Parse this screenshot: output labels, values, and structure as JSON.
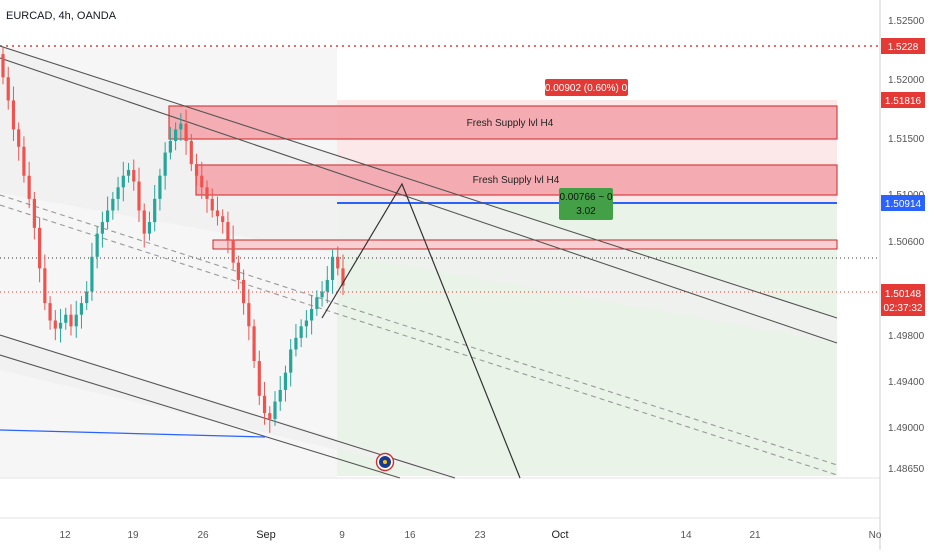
{
  "header": {
    "symbol_label": "EURCAD, 4h, OANDA"
  },
  "colors": {
    "up": "#26a69a",
    "down": "#ef5350",
    "supply_fill": "#f4a6ad",
    "supply_border": "#d32f2f",
    "current_price": "#e53935",
    "target_line": "#2962ff",
    "profit_zone": "#e7f2e6",
    "loss_zone": "#fbe3e5",
    "channel": "#555555",
    "dashed_mid": "#9a9a9a"
  },
  "price_axis": {
    "labels": [
      "1.52500",
      "1.52000",
      "1.51500",
      "1.51000",
      "1.50600",
      "1.49800",
      "1.49400",
      "1.49000",
      "1.48650"
    ]
  },
  "price_tags": {
    "dotted_red": "1.5228",
    "supply_top": "1.51816",
    "target": "1.50914",
    "current": "1.50148",
    "countdown": "02:37:32"
  },
  "time_axis": {
    "labels": [
      "12",
      "19",
      "26",
      "Sep",
      "9",
      "16",
      "23",
      "Oct",
      "14",
      "21",
      "No"
    ]
  },
  "zones": {
    "supply_1_label": "Fresh Supply lvl H4",
    "supply_2_label": "Fresh Supply lvl H4",
    "stop_label": "0.00902 (0.60%) 0",
    "target_label_line1": "0.00766 ~ 0",
    "target_label_line2": "3.02"
  },
  "chart_data": {
    "type": "candlestick",
    "title": "EURCAD, 4h, OANDA",
    "ylim": [
      1.4849,
      1.526
    ],
    "x": "4h bars, late August to early September",
    "x_tick_labels": [
      "12",
      "19",
      "26",
      "Sep",
      "9",
      "16",
      "23",
      "Oct",
      "14",
      "21",
      "No"
    ],
    "y_tick_labels": [
      "1.52500",
      "1.52000",
      "1.51500",
      "1.51000",
      "1.50600",
      "1.49800",
      "1.49400",
      "1.49000",
      "1.48650"
    ],
    "series": [
      {
        "type": "close",
        "values": [
          1.5195,
          1.5175,
          1.515,
          1.5135,
          1.511,
          1.509,
          1.5065,
          1.503,
          1.5,
          1.4985,
          1.4978,
          1.4983,
          1.499,
          1.498,
          1.499,
          1.5,
          1.501,
          1.504,
          1.506,
          1.507,
          1.508,
          1.509,
          1.51,
          1.511,
          1.5115,
          1.5105,
          1.508,
          1.506,
          1.507,
          1.509,
          1.511,
          1.513,
          1.514,
          1.515,
          1.5155,
          1.514,
          1.512,
          1.511,
          1.51,
          1.509,
          1.508,
          1.5075,
          1.507,
          1.5055,
          1.5035,
          1.502,
          1.5,
          1.498,
          1.495,
          1.492,
          1.4905,
          1.49,
          1.4915,
          1.4925,
          1.494,
          1.496,
          1.497,
          1.498,
          1.4985,
          1.4995,
          1.5005,
          1.501,
          1.502,
          1.504,
          1.503,
          1.5015
        ]
      }
    ],
    "levels": [
      {
        "label": "1.5228",
        "value": 1.5228
      },
      {
        "label": "1.51816",
        "value": 1.51816
      },
      {
        "label": "1.50914",
        "value": 1.50914
      },
      {
        "label": "1.50148",
        "value": 1.50148
      }
    ],
    "annotations": [
      "Fresh Supply lvl H4",
      "Fresh Supply lvl H4",
      "0.00902 (0.60%) 0",
      "0.00766 ~ 0",
      "3.02"
    ],
    "grid": false
  }
}
